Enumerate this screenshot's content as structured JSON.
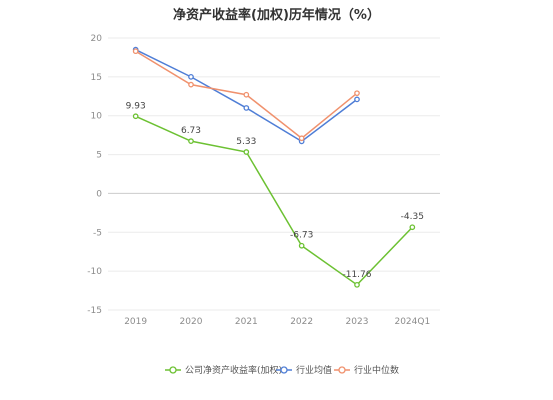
{
  "chart_data": {
    "type": "line",
    "title": "净资产收益率(加权)历年情况（%）",
    "categories": [
      "2019",
      "2020",
      "2021",
      "2022",
      "2023",
      "2024Q1"
    ],
    "ylim": [
      -15,
      20
    ],
    "yticks": [
      20,
      15,
      10,
      5,
      0,
      -5,
      -10,
      -15
    ],
    "grid": true,
    "legend_position": "bottom",
    "series": [
      {
        "name": "公司净资产收益率(加权)",
        "color": "#6cc132",
        "values": [
          9.93,
          6.73,
          5.33,
          -6.73,
          -11.76,
          -4.35
        ],
        "labels": [
          "9.93",
          "6.73",
          "5.33",
          "-6.73",
          "-11.76",
          "-4.35"
        ]
      },
      {
        "name": "行业均值",
        "color": "#4f7ed6",
        "values": [
          18.5,
          15.0,
          11.0,
          6.7,
          12.1,
          null
        ]
      },
      {
        "name": "行业中位数",
        "color": "#f0916d",
        "values": [
          18.3,
          14.0,
          12.7,
          7.1,
          12.9,
          null
        ]
      }
    ]
  }
}
